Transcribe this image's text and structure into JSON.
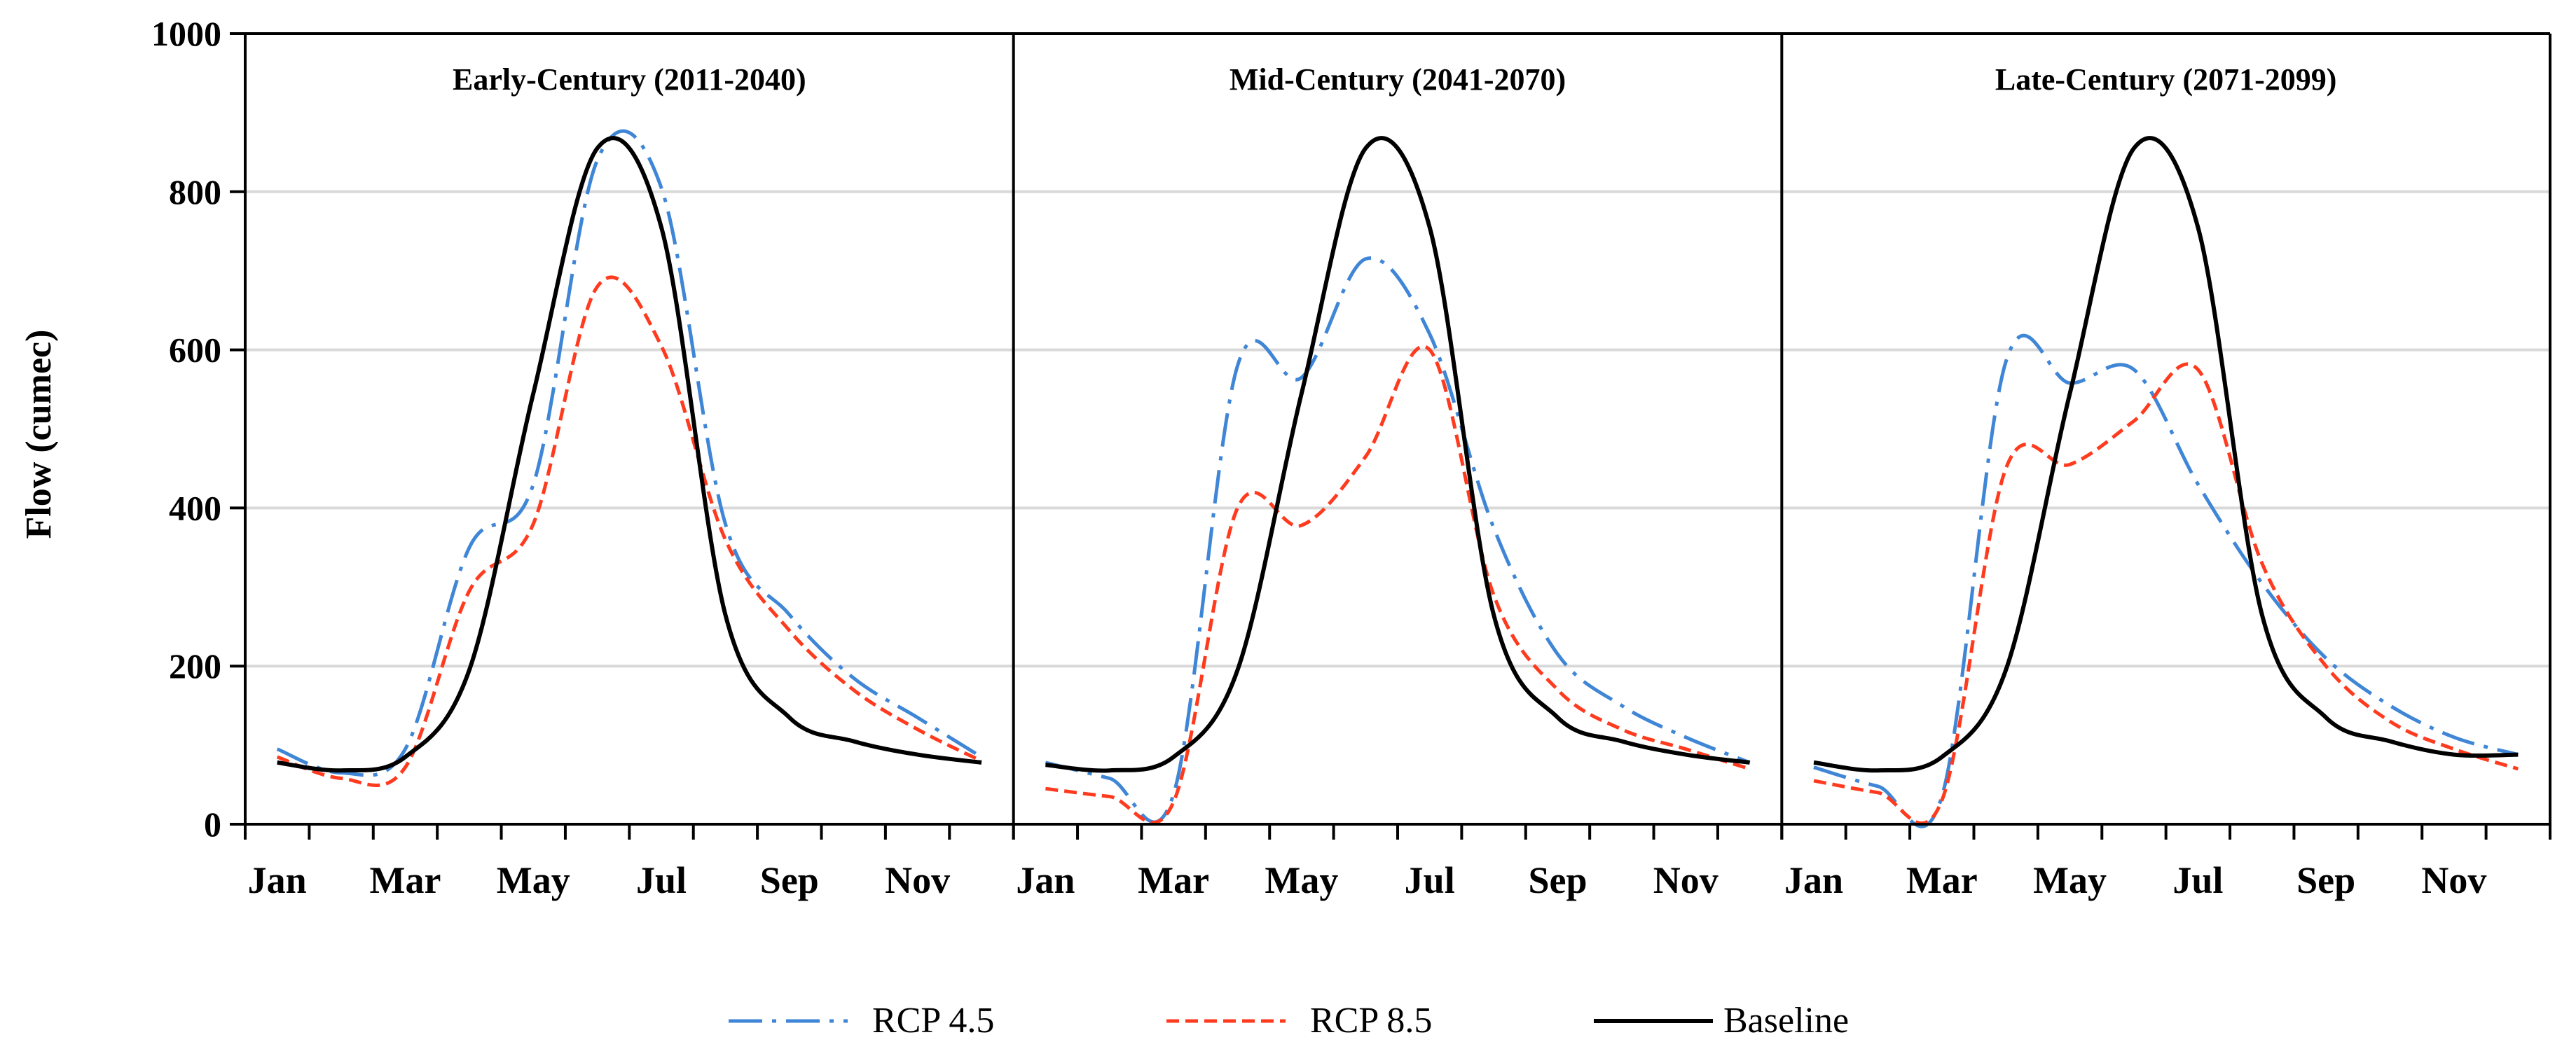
{
  "chart_data": {
    "type": "line",
    "ylabel": "Flow (cumec)",
    "ylim": [
      0,
      1000
    ],
    "yticks": [
      "0",
      "200",
      "400",
      "600",
      "800",
      "1000"
    ],
    "grid": "horizontal",
    "legend_position": "bottom",
    "x_tick_labels": [
      "Jan",
      "Mar",
      "May",
      "Jul",
      "Sep",
      "Nov"
    ],
    "colors": {
      "rcp45": "#3f86d6",
      "rcp85": "#ff3b1f",
      "baseline": "#000000",
      "grid": "#d9d9d9"
    },
    "legend": [
      {
        "key": "rcp45",
        "label": "RCP 4.5"
      },
      {
        "key": "rcp85",
        "label": "RCP 8.5"
      },
      {
        "key": "baseline",
        "label": "Baseline"
      }
    ],
    "panels": [
      {
        "title": "Early-Century (2011-2040)",
        "categories": [
          "Jan",
          "Feb",
          "Mar",
          "Apr",
          "May",
          "Jun",
          "Jul",
          "Aug",
          "Sep",
          "Oct",
          "Nov",
          "Dec"
        ],
        "series": [
          {
            "key": "rcp45",
            "name": "RCP 4.5",
            "values": [
              95,
              65,
              95,
              350,
              430,
              840,
              805,
              380,
              265,
              185,
              135,
              85
            ]
          },
          {
            "key": "rcp85",
            "name": "RCP 8.5",
            "values": [
              85,
              58,
              72,
              295,
              380,
              680,
              605,
              360,
              245,
              170,
              120,
              80
            ]
          },
          {
            "key": "baseline",
            "name": "Baseline",
            "values": [
              78,
              68,
              85,
              195,
              545,
              855,
              755,
              265,
              135,
              105,
              88,
              78
            ]
          }
        ]
      },
      {
        "title": "Mid-Century (2041-2070)",
        "categories": [
          "Jan",
          "Feb",
          "Mar",
          "Apr",
          "May",
          "Jun",
          "Jul",
          "Aug",
          "Sep",
          "Oct",
          "Nov",
          "Dec"
        ],
        "series": [
          {
            "key": "rcp45",
            "name": "RCP 4.5",
            "values": [
              78,
              58,
              38,
              580,
              565,
              715,
              620,
              375,
              215,
              150,
              110,
              78
            ]
          },
          {
            "key": "rcp85",
            "name": "RCP 8.5",
            "values": [
              45,
              35,
              28,
              400,
              378,
              465,
              600,
              290,
              170,
              120,
              95,
              70
            ]
          },
          {
            "key": "baseline",
            "name": "Baseline",
            "values": [
              75,
              68,
              85,
              195,
              545,
              855,
              755,
              265,
              135,
              105,
              88,
              78
            ]
          }
        ]
      },
      {
        "title": "Late-Century (2071-2099)",
        "categories": [
          "Jan",
          "Feb",
          "Mar",
          "Apr",
          "May",
          "Jun",
          "Jul",
          "Aug",
          "Sep",
          "Oct",
          "Nov",
          "Dec"
        ],
        "series": [
          {
            "key": "rcp45",
            "name": "RCP 4.5",
            "values": [
              72,
              48,
              35,
              585,
              558,
              575,
              430,
              305,
              210,
              150,
              110,
              88
            ]
          },
          {
            "key": "rcp85",
            "name": "RCP 8.5",
            "values": [
              55,
              40,
              30,
              450,
              455,
              510,
              575,
              330,
              200,
              130,
              95,
              70
            ]
          },
          {
            "key": "baseline",
            "name": "Baseline",
            "values": [
              78,
              68,
              85,
              195,
              545,
              855,
              755,
              265,
              135,
              105,
              88,
              88
            ]
          }
        ]
      }
    ]
  }
}
